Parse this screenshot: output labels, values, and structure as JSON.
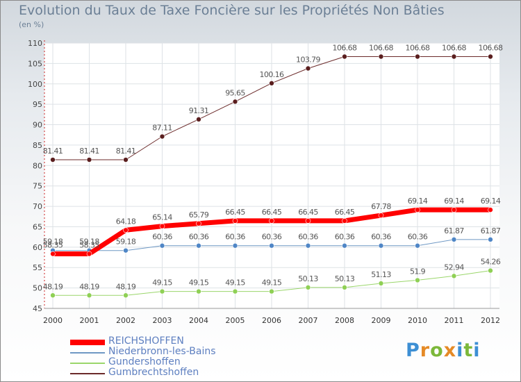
{
  "page": {
    "title": "Evolution du Taux de Taxe Foncière sur les Propriétés Non Bâties",
    "subtitle": "(en %)",
    "brand": {
      "letters": [
        "P",
        "r",
        "o",
        "x",
        "i",
        "t",
        "i"
      ]
    }
  },
  "chart_data": {
    "type": "line",
    "title": "Evolution du Taux de Taxe Foncière sur les Propriétés Non Bâties",
    "ylabel": "(en %)",
    "xlabel": "",
    "ylim": [
      45,
      110
    ],
    "yticks": [
      45,
      50,
      55,
      60,
      65,
      70,
      75,
      80,
      85,
      90,
      95,
      100,
      105,
      110
    ],
    "categories": [
      "2000",
      "2001",
      "2002",
      "2003",
      "2004",
      "2005",
      "2006",
      "2007",
      "2008",
      "2009",
      "2010",
      "2011",
      "2012"
    ],
    "series": [
      {
        "name": "Gumbrechtshoffen",
        "color": "#6b2a2a",
        "marker": "#5a1e1e",
        "width": 1,
        "values": [
          81.41,
          81.41,
          81.41,
          87.11,
          91.31,
          95.65,
          100.16,
          103.79,
          106.68,
          106.68,
          106.68,
          106.68,
          106.68
        ],
        "labels": [
          "81.41",
          "81.41",
          "81.41",
          "87.11",
          "91.31",
          "95.65",
          "100.16",
          "103.79",
          "106.68",
          "106.68",
          "106.68",
          "106.68",
          "106.68"
        ]
      },
      {
        "name": "Gundershoffen",
        "color": "#9ad66a",
        "marker": "#8fd055",
        "width": 1,
        "values": [
          48.19,
          48.19,
          48.19,
          49.15,
          49.15,
          49.15,
          49.15,
          50.13,
          50.13,
          51.13,
          51.9,
          52.94,
          54.26
        ],
        "labels": [
          "48.19",
          "48.19",
          "48.19",
          "49.15",
          "49.15",
          "49.15",
          "49.15",
          "50.13",
          "50.13",
          "51.13",
          "51.9",
          "52.94",
          "54.26"
        ]
      },
      {
        "name": "Niederbronn-les-Bains",
        "color": "#6e98c4",
        "marker": "#4f86c6",
        "width": 1,
        "values": [
          59.18,
          59.18,
          59.18,
          60.36,
          60.36,
          60.36,
          60.36,
          60.36,
          60.36,
          60.36,
          60.36,
          61.87,
          61.87
        ],
        "labels": [
          "59.18",
          "59.18",
          "59.18",
          "60.36",
          "60.36",
          "60.36",
          "60.36",
          "60.36",
          "60.36",
          "60.36",
          "60.36",
          "61.87",
          "61.87"
        ]
      },
      {
        "name": "REICHSHOFFEN",
        "color": "#ff0000",
        "marker": "#ff0000",
        "width": 7,
        "values": [
          58.35,
          58.35,
          64.18,
          65.14,
          65.79,
          66.45,
          66.45,
          66.45,
          66.45,
          67.78,
          69.14,
          69.14,
          69.14
        ],
        "labels": [
          "58.35",
          "58.35",
          "64.18",
          "65.14",
          "65.79",
          "66.45",
          "66.45",
          "66.45",
          "66.45",
          "67.78",
          "69.14",
          "69.14",
          "69.14"
        ]
      }
    ],
    "legend_order": [
      "REICHSHOFFEN",
      "Niederbronn-les-Bains",
      "Gundershoffen",
      "Gumbrechtshoffen"
    ],
    "legend_position": "bottom-left"
  }
}
